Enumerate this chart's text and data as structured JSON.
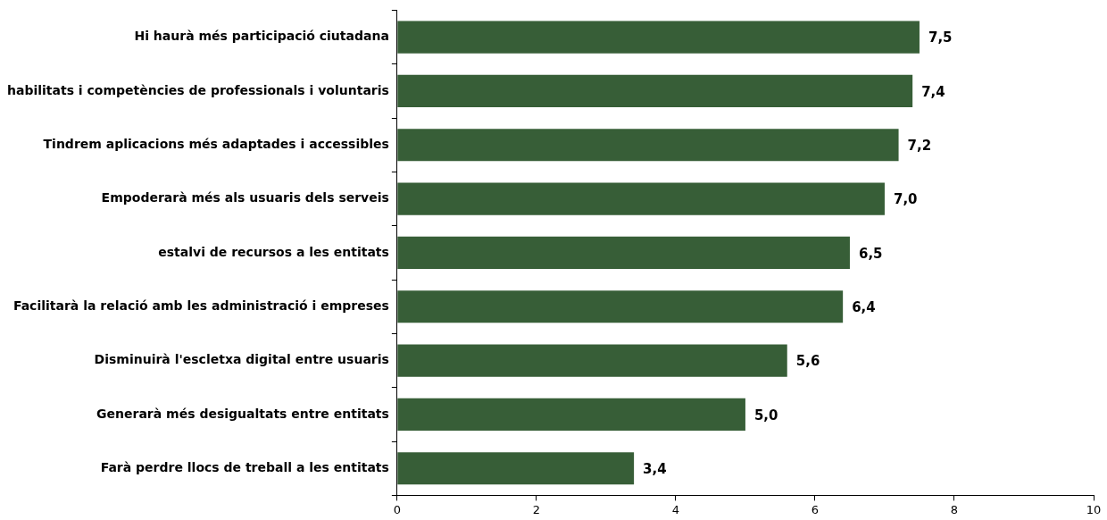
{
  "chart_data": {
    "type": "bar",
    "orientation": "horizontal",
    "categories": [
      "Hi haurà més participació ciutadana",
      "habilitats i competències de professionals i voluntaris",
      "Tindrem aplicacions més adaptades i accessibles",
      "Empoderarà més als usuaris dels serveis",
      "estalvi de recursos a les entitats",
      "Facilitarà la relació amb les administració i empreses",
      "Disminuirà l'escletxa digital entre usuaris",
      "Generarà més desigualtats entre entitats",
      "Farà perdre llocs de treball a les entitats"
    ],
    "values": [
      7.5,
      7.4,
      7.2,
      7.0,
      6.5,
      6.4,
      5.6,
      5.0,
      3.4
    ],
    "value_labels": [
      "7,5",
      "7,4",
      "7,2",
      "7,0",
      "6,5",
      "6,4",
      "5,6",
      "5,0",
      "3,4"
    ],
    "color": "#375e37",
    "xlim": [
      0,
      10
    ],
    "xticks": [
      0,
      2,
      4,
      6,
      8,
      10
    ],
    "grid": false,
    "legend": false
  }
}
